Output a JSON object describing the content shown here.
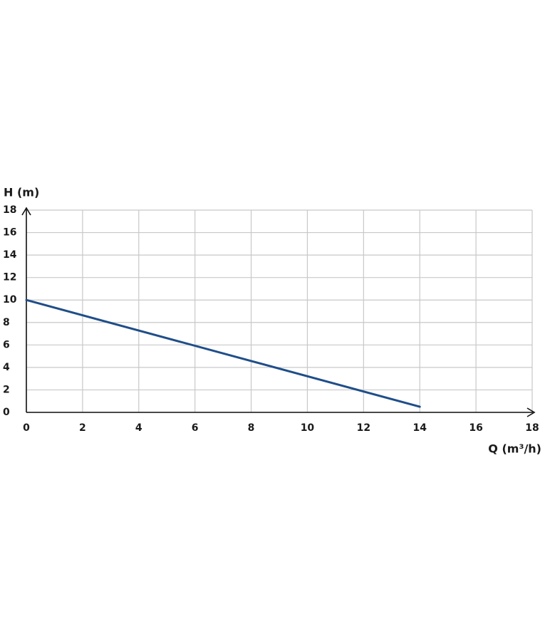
{
  "chart_data": {
    "type": "line",
    "ylabel": "H (m)",
    "xlabel": "Q (m³/h)",
    "x": [
      0,
      14
    ],
    "values": [
      10,
      0.5
    ],
    "color": "#1f4e89",
    "xlim": [
      0,
      18
    ],
    "xticks": [
      0,
      2,
      4,
      6,
      8,
      10,
      12,
      14,
      16,
      18
    ],
    "ylim": [
      0,
      18
    ],
    "yticks": [
      0,
      2,
      4,
      6,
      8,
      10,
      12,
      14,
      16,
      18
    ],
    "grid": true
  }
}
